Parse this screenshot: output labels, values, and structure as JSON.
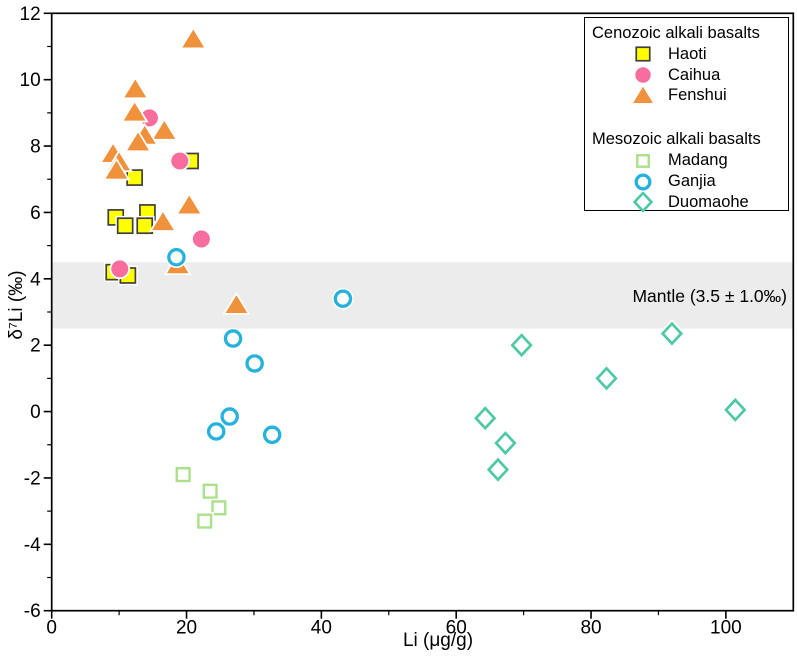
{
  "chart_data": {
    "type": "scatter",
    "title": "",
    "xlabel": "Li (μg/g)",
    "ylabel": "δ⁷Li (‰)",
    "xlim": [
      0,
      110
    ],
    "ylim": [
      -6,
      12
    ],
    "grid": false,
    "legend_position": "top-right",
    "x_major_ticks": [
      0,
      20,
      40,
      60,
      80,
      100
    ],
    "x_minor_ticks": [
      10,
      30,
      50,
      70,
      90
    ],
    "y_major_ticks": [
      -6,
      -4,
      -2,
      0,
      2,
      4,
      6,
      8,
      10,
      12
    ],
    "y_minor_ticks": [
      -5,
      -3,
      -1,
      1,
      3,
      5,
      7,
      9,
      11
    ],
    "band": {
      "label": "Mantle (3.5 ± 1.0‰)",
      "y_from": 2.5,
      "y_to": 4.5,
      "color": "#ececec"
    },
    "frame_color": "#000000",
    "groups": [
      {
        "title": "Cenozoic alkali basalts",
        "series": [
          {
            "name": "Haoti",
            "marker": "square",
            "filled": true,
            "color": "#ffff00",
            "edge": "#3f3f3f",
            "points": [
              [
                20.6,
                7.55
              ],
              [
                12.3,
                7.05
              ],
              [
                14.2,
                6.0
              ],
              [
                9.5,
                5.85
              ],
              [
                13.8,
                5.6
              ],
              [
                10.9,
                5.6
              ],
              [
                9.2,
                4.2
              ],
              [
                11.3,
                4.1
              ]
            ]
          },
          {
            "name": "Caihua",
            "marker": "circle",
            "filled": true,
            "color": "#f76d9e",
            "edge": "#f76d9e",
            "points": [
              [
                14.5,
                8.85
              ],
              [
                19.0,
                7.55
              ],
              [
                22.2,
                5.2
              ],
              [
                10.1,
                4.3
              ]
            ]
          },
          {
            "name": "Fenshui",
            "marker": "triangle",
            "filled": true,
            "color": "#f0913c",
            "edge": "#f0913c",
            "points": [
              [
                21.0,
                11.2
              ],
              [
                12.4,
                9.7
              ],
              [
                12.3,
                9.0
              ],
              [
                16.7,
                8.45
              ],
              [
                13.8,
                8.3
              ],
              [
                12.8,
                8.1
              ],
              [
                9.1,
                7.75
              ],
              [
                10.0,
                7.5
              ],
              [
                9.6,
                7.25
              ],
              [
                20.4,
                6.2
              ],
              [
                16.5,
                5.7
              ],
              [
                18.7,
                4.4
              ],
              [
                27.4,
                3.2
              ]
            ]
          }
        ]
      },
      {
        "title": "Mesozoic alkali basalts",
        "series": [
          {
            "name": "Madang",
            "marker": "square",
            "filled": false,
            "color": "#abe18a",
            "edge": "#abe18a",
            "points": [
              [
                19.5,
                -1.9
              ],
              [
                23.5,
                -2.4
              ],
              [
                24.8,
                -2.9
              ],
              [
                22.7,
                -3.3
              ]
            ]
          },
          {
            "name": "Ganjia",
            "marker": "circle",
            "filled": false,
            "color": "#25b2dc",
            "edge": "#25b2dc",
            "points": [
              [
                18.5,
                4.65
              ],
              [
                43.2,
                3.4
              ],
              [
                26.9,
                2.2
              ],
              [
                30.1,
                1.45
              ],
              [
                26.4,
                -0.15
              ],
              [
                24.4,
                -0.6
              ],
              [
                32.7,
                -0.7
              ]
            ]
          },
          {
            "name": "Duomaohe",
            "marker": "diamond",
            "filled": false,
            "color": "#4ec9a4",
            "edge": "#4ec9a4",
            "points": [
              [
                69.7,
                2.0
              ],
              [
                92.0,
                2.35
              ],
              [
                82.3,
                1.0
              ],
              [
                101.4,
                0.05
              ],
              [
                64.3,
                -0.2
              ],
              [
                67.3,
                -0.95
              ],
              [
                66.2,
                -1.75
              ]
            ]
          }
        ]
      }
    ]
  }
}
